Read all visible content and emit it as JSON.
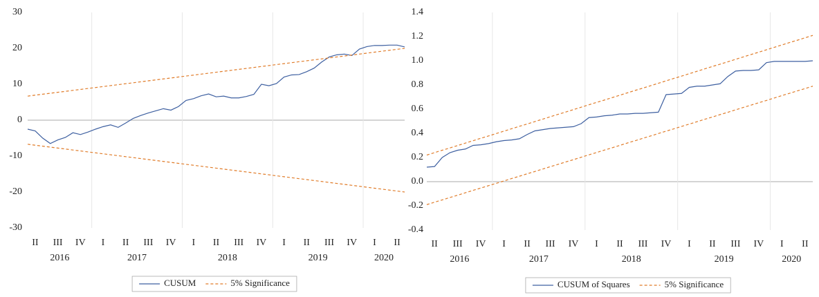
{
  "chart_data": [
    {
      "type": "line",
      "categories": [
        null,
        "II",
        null,
        null,
        "III",
        null,
        null,
        "IV",
        null,
        null,
        "I",
        null,
        null,
        "II",
        null,
        null,
        "III",
        null,
        null,
        "IV",
        null,
        null,
        "I",
        null,
        null,
        "II",
        null,
        null,
        "III",
        null,
        null,
        "IV",
        null,
        null,
        "I",
        null,
        null,
        "II",
        null,
        null,
        "III",
        null,
        null,
        "IV",
        null,
        null,
        "I",
        null,
        null,
        "II",
        null
      ],
      "x_groups": [
        "2016",
        "2017",
        "2018",
        "2019",
        "2020"
      ],
      "ylim": [
        -30,
        30
      ],
      "yticks": [
        30,
        20,
        10,
        0,
        -10,
        -20,
        -30
      ],
      "grid": false,
      "series": [
        {
          "name": "CUSUM",
          "color": "#3d5fa0",
          "dashed": false,
          "values": [
            -2.5,
            -3,
            -5,
            -6.5,
            -5.5,
            -4.8,
            -3.5,
            -4,
            -3.3,
            -2.5,
            -1.8,
            -1.3,
            -2,
            -0.8,
            0.5,
            1.3,
            2,
            2.6,
            3.2,
            2.8,
            3.8,
            5.5,
            6,
            6.8,
            7.3,
            6.5,
            6.7,
            6.2,
            6.2,
            6.6,
            7.2,
            10,
            9.6,
            10.2,
            12,
            12.6,
            12.7,
            13.5,
            14.5,
            16.2,
            17.6,
            18.2,
            18.4,
            18,
            19.8,
            20.5,
            20.8,
            20.8,
            20.9,
            20.9,
            20.4
          ]
        },
        {
          "name": "5% Significance",
          "color": "#e07b28",
          "dashed": true,
          "values": [
            6.7,
            6.97,
            7.23,
            7.5,
            7.76,
            8.03,
            8.3,
            8.56,
            8.83,
            9.09,
            9.36,
            9.63,
            9.89,
            10.16,
            10.42,
            10.69,
            10.96,
            11.22,
            11.49,
            11.75,
            12.02,
            12.29,
            12.55,
            12.82,
            13.08,
            13.35,
            13.62,
            13.88,
            14.15,
            14.41,
            14.68,
            14.95,
            15.21,
            15.48,
            15.74,
            16.01,
            16.28,
            16.54,
            16.81,
            17.07,
            17.34,
            17.61,
            17.87,
            18.14,
            18.4,
            18.67,
            18.94,
            19.2,
            19.47,
            19.73,
            20
          ],
          "values_lower": [
            -6.7,
            -6.97,
            -7.23,
            -7.5,
            -7.76,
            -8.03,
            -8.3,
            -8.56,
            -8.83,
            -9.09,
            -9.36,
            -9.63,
            -9.89,
            -10.16,
            -10.42,
            -10.69,
            -10.96,
            -11.22,
            -11.49,
            -11.75,
            -12.02,
            -12.29,
            -12.55,
            -12.82,
            -13.08,
            -13.35,
            -13.62,
            -13.88,
            -14.15,
            -14.41,
            -14.68,
            -14.95,
            -15.21,
            -15.48,
            -15.74,
            -16.01,
            -16.28,
            -16.54,
            -16.81,
            -17.07,
            -17.34,
            -17.61,
            -17.87,
            -18.14,
            -18.4,
            -18.67,
            -18.94,
            -19.2,
            -19.47,
            -19.73,
            -20
          ]
        }
      ]
    },
    {
      "type": "line",
      "categories": [
        null,
        "II",
        null,
        null,
        "III",
        null,
        null,
        "IV",
        null,
        null,
        "I",
        null,
        null,
        "II",
        null,
        null,
        "III",
        null,
        null,
        "IV",
        null,
        null,
        "I",
        null,
        null,
        "II",
        null,
        null,
        "III",
        null,
        null,
        "IV",
        null,
        null,
        "I",
        null,
        null,
        "II",
        null,
        null,
        "III",
        null,
        null,
        "IV",
        null,
        null,
        "I",
        null,
        null,
        "II",
        null
      ],
      "x_groups": [
        "2016",
        "2017",
        "2018",
        "2019",
        "2020"
      ],
      "ylim": [
        -0.4,
        1.4
      ],
      "yticks": [
        1.4,
        1.2,
        {
          "value": 1,
          "label": "1.0"
        },
        0.8,
        0.6,
        0.4,
        0.2,
        {
          "value": 0,
          "label": "0.0"
        },
        -0.2,
        -0.4
      ],
      "grid": false,
      "series": [
        {
          "name": "CUSUM of Squares",
          "color": "#3d5fa0",
          "dashed": false,
          "values": [
            0.12,
            0.125,
            0.2,
            0.24,
            0.26,
            0.27,
            0.3,
            0.305,
            0.315,
            0.33,
            0.34,
            0.345,
            0.355,
            0.39,
            0.42,
            0.43,
            0.44,
            0.445,
            0.45,
            0.455,
            0.48,
            0.53,
            0.535,
            0.545,
            0.55,
            0.56,
            0.56,
            0.565,
            0.565,
            0.57,
            0.575,
            0.72,
            0.725,
            0.73,
            0.78,
            0.79,
            0.79,
            0.8,
            0.81,
            0.87,
            0.915,
            0.92,
            0.92,
            0.925,
            0.985,
            0.995,
            0.995,
            0.995,
            0.995,
            0.995,
            1
          ]
        },
        {
          "name": "5% Significance",
          "color": "#e07b28",
          "dashed": true,
          "values": [
            0.22,
            0.24,
            0.26,
            0.279,
            0.299,
            0.319,
            0.339,
            0.359,
            0.378,
            0.398,
            0.418,
            0.438,
            0.458,
            0.477,
            0.497,
            0.517,
            0.537,
            0.557,
            0.576,
            0.596,
            0.616,
            0.636,
            0.656,
            0.675,
            0.695,
            0.715,
            0.735,
            0.755,
            0.774,
            0.794,
            0.814,
            0.834,
            0.854,
            0.873,
            0.893,
            0.913,
            0.933,
            0.953,
            0.972,
            0.992,
            1.012,
            1.032,
            1.052,
            1.071,
            1.091,
            1.111,
            1.131,
            1.151,
            1.17,
            1.19,
            1.21
          ],
          "values_lower": [
            -0.19,
            -0.17,
            -0.151,
            -0.131,
            -0.112,
            -0.092,
            -0.072,
            -0.053,
            -0.033,
            -0.014,
            0.006,
            0.026,
            0.045,
            0.065,
            0.084,
            0.104,
            0.124,
            0.143,
            0.163,
            0.182,
            0.202,
            0.222,
            0.241,
            0.261,
            0.28,
            0.3,
            0.32,
            0.339,
            0.359,
            0.378,
            0.398,
            0.418,
            0.437,
            0.457,
            0.476,
            0.496,
            0.516,
            0.535,
            0.555,
            0.574,
            0.594,
            0.614,
            0.633,
            0.653,
            0.672,
            0.692,
            0.712,
            0.731,
            0.751,
            0.77,
            0.79
          ]
        }
      ]
    }
  ]
}
